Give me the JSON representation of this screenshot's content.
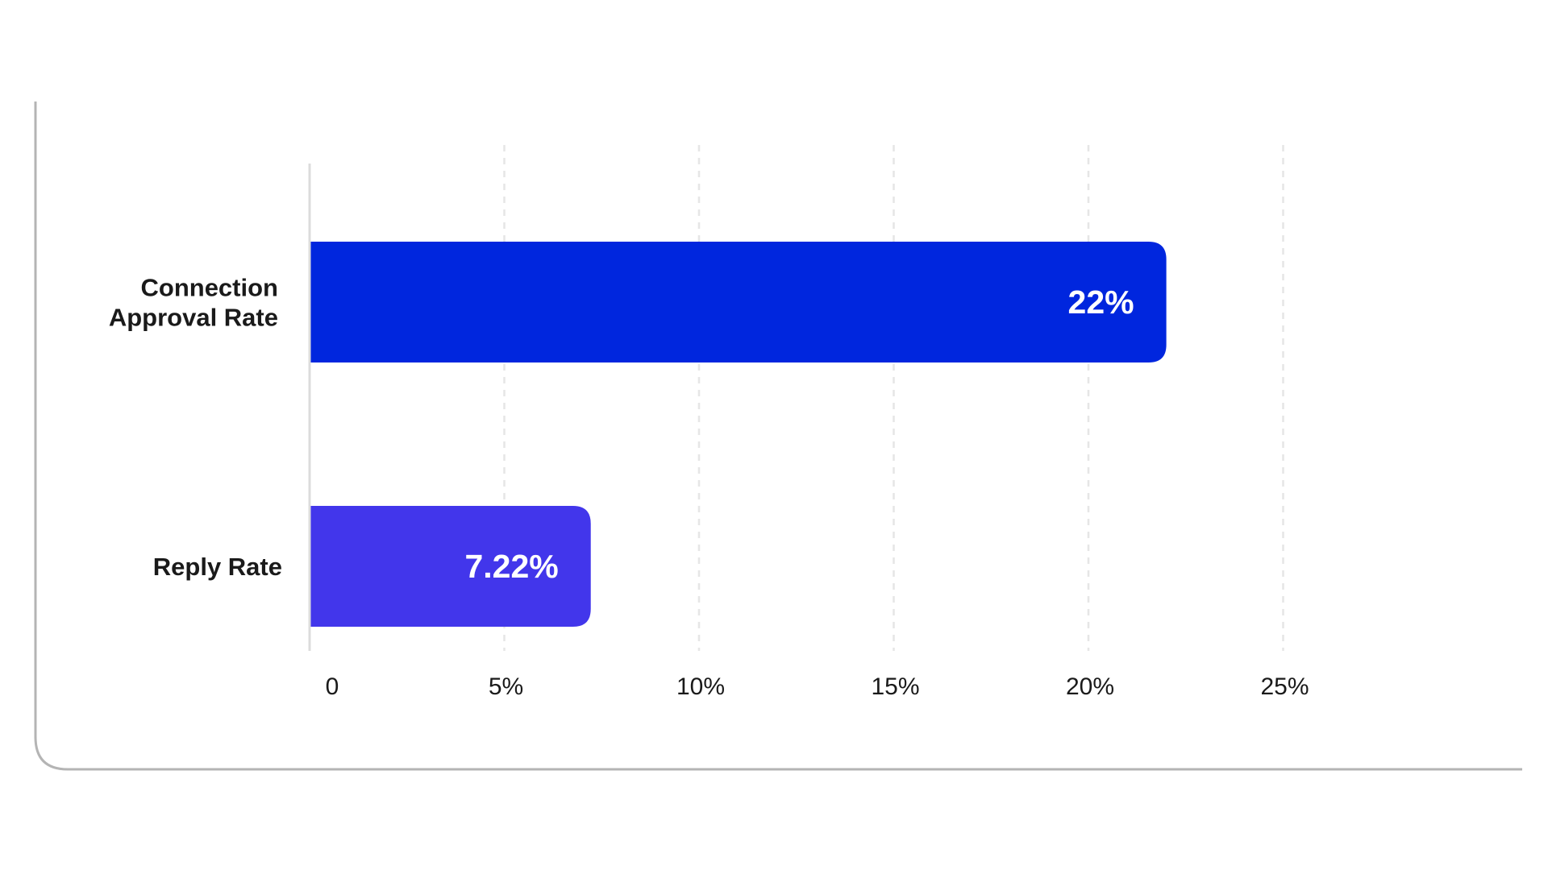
{
  "chart_data": {
    "type": "bar",
    "orientation": "horizontal",
    "categories": [
      "Connection\nApproval Rate",
      "Reply Rate"
    ],
    "values": [
      22,
      7.22
    ],
    "value_labels": [
      "22%",
      "7.22%"
    ],
    "bar_colors": [
      "#0026de",
      "#4236eb"
    ],
    "x_ticks": [
      0,
      5,
      10,
      15,
      20,
      25
    ],
    "x_tick_labels": [
      "0",
      "5%",
      "10%",
      "15%",
      "20%",
      "25%"
    ],
    "xlim": [
      0,
      25
    ],
    "title": "",
    "xlabel": "",
    "ylabel": "",
    "grid": "vertical dashed",
    "legend": "none"
  },
  "colors": {
    "frame": "#b4b4b4",
    "grid": "#e6e6e6",
    "axis": "#dcdcdc",
    "text": "#1a1a1a",
    "value_text": "#ffffff"
  }
}
